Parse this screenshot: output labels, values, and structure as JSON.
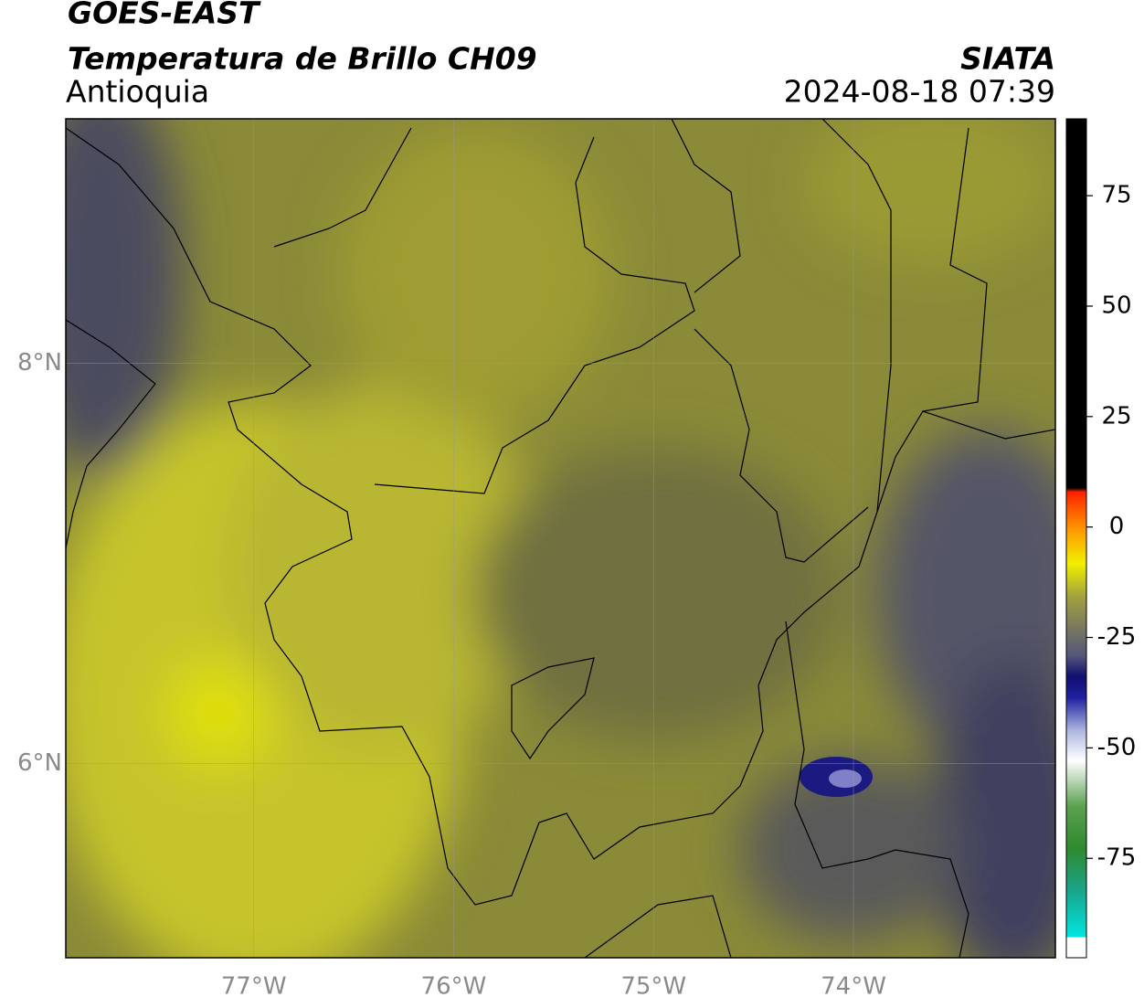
{
  "header": {
    "title": "GOES-EAST",
    "subtitle": "Temperatura de Brillo CH09",
    "region": "Antioquia",
    "source": "SIATA",
    "datetime": "2024-08-18 07:39"
  },
  "map": {
    "lonlim": [
      -77.94,
      -72.99
    ],
    "latlim": [
      5.03,
      9.22
    ],
    "lonticks": [
      {
        "value": -77,
        "label": "77°W"
      },
      {
        "value": -76,
        "label": "76°W"
      },
      {
        "value": -75,
        "label": "75°W"
      },
      {
        "value": -74,
        "label": "74°W"
      }
    ],
    "latticks": [
      {
        "value": 8,
        "label": "8°N"
      },
      {
        "value": 6,
        "label": "6°N"
      }
    ]
  },
  "colorbar": {
    "lim": [
      -97.5,
      92.4
    ],
    "ticks": [
      75,
      50,
      25,
      0,
      -25,
      -50,
      -75
    ]
  }
}
